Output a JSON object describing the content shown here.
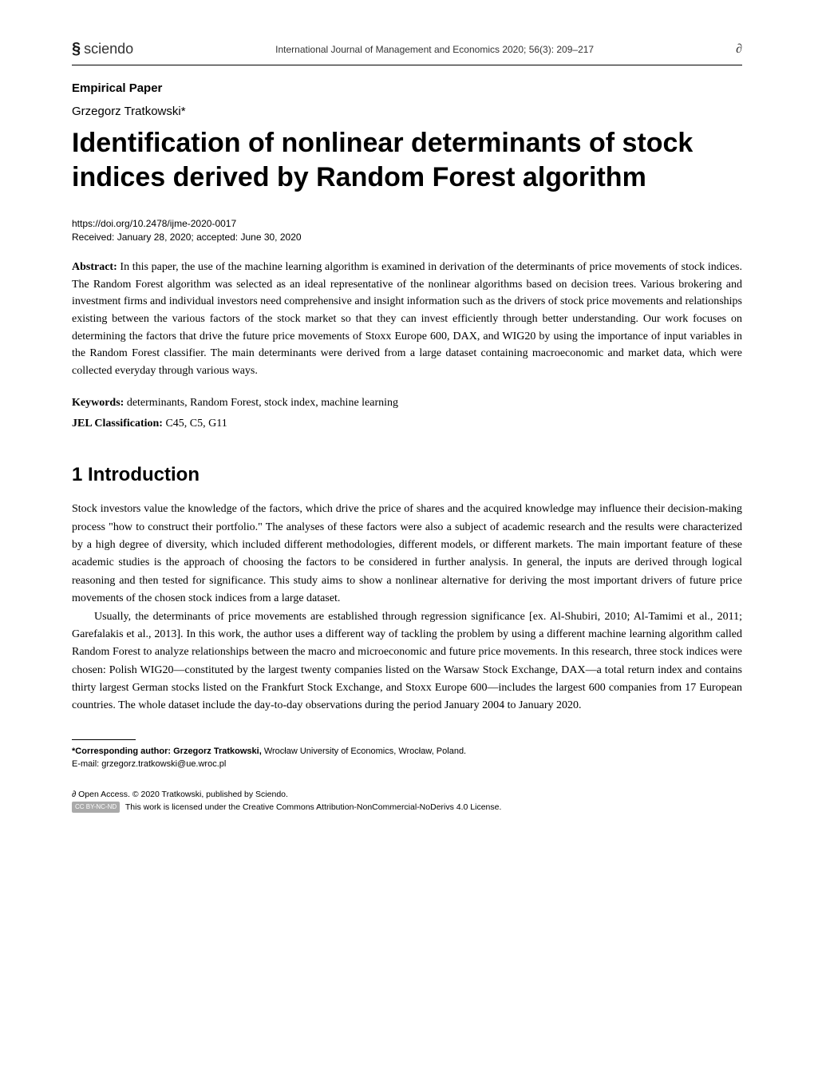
{
  "header": {
    "publisher": "sciendo",
    "journal_citation": "International Journal of Management and Economics 2020; 56(3): 209–217",
    "oa_symbol": "∂"
  },
  "paper": {
    "type": "Empirical Paper",
    "author": "Grzegorz Tratkowski*",
    "title": "Identification of nonlinear determinants of stock indices derived by Random Forest algorithm",
    "doi": "https://doi.org/10.2478/ijme-2020-0017",
    "dates": "Received: January 28, 2020; accepted: June 30, 2020"
  },
  "abstract": {
    "label": "Abstract:",
    "text": " In this paper, the use of the machine learning algorithm is examined in derivation of the determinants of price movements of stock indices. The Random Forest algorithm was selected as an ideal representative of the nonlinear algorithms based on decision trees. Various brokering and investment firms and individual investors need comprehensive and insight information such as the drivers of stock price movements and relationships existing between the various factors of the stock market so that they can invest efficiently through better understanding. Our work focuses on determining the factors that drive the future price movements of Stoxx Europe 600, DAX, and WIG20 by using the importance of input variables in the Random Forest classifier. The main determinants were derived from a large dataset containing macroeconomic and market data, which were collected everyday through various ways."
  },
  "keywords": {
    "label": "Keywords:",
    "text": " determinants, Random Forest, stock index, machine learning"
  },
  "jel": {
    "label": "JEL Classification:",
    "text": " C45, C5, G11"
  },
  "section1": {
    "heading": "1  Introduction",
    "para1": "Stock investors value the knowledge of the factors, which drive the price of shares and the acquired knowledge may influence their decision-making process \"how to construct their portfolio.\" The analyses of these factors were also a subject of academic research and the results were characterized by a high degree of diversity, which included different methodologies, different models, or different markets. The main important feature of these academic studies is the approach of choosing the factors to be considered in further analysis. In general, the inputs are derived through logical reasoning and then tested for significance. This study aims to show a nonlinear alternative for deriving the most important drivers of future price movements of the chosen stock indices from a large dataset.",
    "para2": "Usually, the determinants of price movements are established through regression significance [ex. Al-Shubiri, 2010; Al-Tamimi et al., 2011; Garefalakis et al., 2013]. In this work, the author uses a different way of tackling the problem by using a different machine learning algorithm called Random Forest to analyze relationships between the macro and microeconomic and future price movements. In this research, three stock indices were chosen: Polish WIG20—constituted by the largest twenty companies listed on the Warsaw Stock Exchange, DAX—a total return index and contains thirty largest German stocks listed on the Frankfurt Stock Exchange, and Stoxx Europe 600—includes the largest 600 companies from 17 European countries. The whole dataset include the day-to-day observations during the period January 2004 to January 2020."
  },
  "footnote": {
    "label": "*Corresponding author: Grzegorz Tratkowski,",
    "affiliation": " Wrocław University of Economics, Wrocław, Poland.",
    "email_label": "E-mail: ",
    "email": "grzegorz.tratkowski@ue.wroc.pl"
  },
  "license": {
    "oa_symbol": "∂",
    "oa_text": " Open Access. © 2020 Tratkowski, published by Sciendo.",
    "cc_badge": "CC BY-NC-ND",
    "cc_text": " This work is licensed under the Creative Commons Attribution-NonCommercial-NoDerivs 4.0 License."
  }
}
